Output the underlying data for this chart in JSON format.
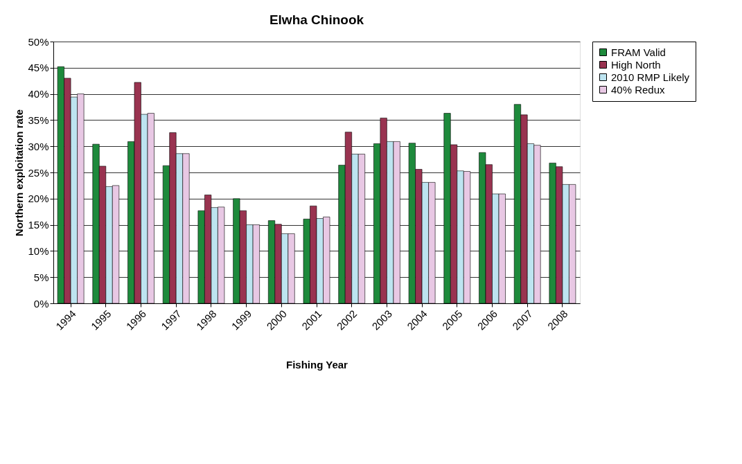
{
  "chart_data": {
    "type": "bar",
    "title": "Elwha Chinook",
    "xlabel": "Fishing Year",
    "ylabel": "Northern exploitation rate",
    "categories": [
      "1994",
      "1995",
      "1996",
      "1997",
      "1998",
      "1999",
      "2000",
      "2001",
      "2002",
      "2003",
      "2004",
      "2005",
      "2006",
      "2007",
      "2008"
    ],
    "series": [
      {
        "name": "FRAM Valid",
        "color": "#1e8a3c",
        "values": [
          45.2,
          30.4,
          30.9,
          26.3,
          17.7,
          20,
          15.8,
          16.1,
          26.4,
          30.5,
          30.6,
          36.3,
          28.8,
          38,
          26.8
        ]
      },
      {
        "name": "High North",
        "color": "#993350",
        "values": [
          43,
          26.2,
          42.2,
          32.6,
          20.7,
          17.7,
          15.1,
          18.6,
          32.7,
          35.4,
          25.6,
          30.3,
          26.5,
          36,
          26.1
        ]
      },
      {
        "name": "2010 RMP Likely",
        "color": "#bde4f0",
        "values": [
          39.4,
          22.3,
          36.1,
          28.6,
          18.3,
          15,
          13.3,
          16.2,
          28.5,
          30.9,
          23.1,
          25.3,
          20.9,
          30.5,
          22.7
        ]
      },
      {
        "name": "40% Redux",
        "color": "#e8c8e4",
        "values": [
          40,
          22.5,
          36.3,
          28.6,
          18.4,
          15,
          13.3,
          16.5,
          28.5,
          30.9,
          23.1,
          25.2,
          20.9,
          30.2,
          22.7
        ]
      }
    ],
    "ylim": [
      0,
      50
    ],
    "yticks": [
      {
        "value": 0,
        "label": "0%"
      },
      {
        "value": 5,
        "label": "5%"
      },
      {
        "value": 10,
        "label": "10%"
      },
      {
        "value": 15,
        "label": "15%"
      },
      {
        "value": 20,
        "label": "20%"
      },
      {
        "value": 25,
        "label": "25%"
      },
      {
        "value": 30,
        "label": "30%"
      },
      {
        "value": 35,
        "label": "35%"
      },
      {
        "value": 40,
        "label": "40%"
      },
      {
        "value": 45,
        "label": "45%"
      },
      {
        "value": 50,
        "label": "50%"
      }
    ],
    "grid": "y",
    "legend": "right"
  }
}
